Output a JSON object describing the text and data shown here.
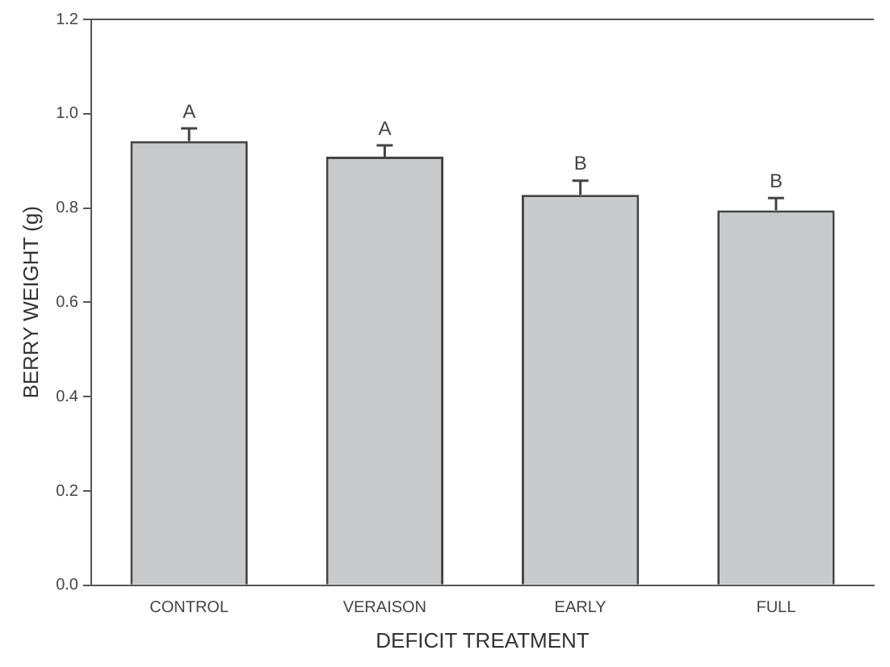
{
  "chart_data": {
    "type": "bar",
    "xlabel": "DEFICIT TREATMENT",
    "ylabel": "BERRY WEIGHT (g)",
    "categories": [
      "CONTROL",
      "VERAISON",
      "EARLY",
      "FULL"
    ],
    "values": [
      0.942,
      0.909,
      0.828,
      0.795
    ],
    "errors": [
      [
        0.942,
        0.969
      ],
      [
        0.909,
        0.933
      ],
      [
        0.828,
        0.858
      ],
      [
        0.795,
        0.821
      ]
    ],
    "color": "#c8cacc",
    "ylim": [
      0,
      1.2
    ],
    "yticks": [
      {
        "value": 0,
        "label": "0.0"
      },
      {
        "value": 0.2,
        "label": "0.2"
      },
      {
        "value": 0.4,
        "label": "0.4"
      },
      {
        "value": 0.6,
        "label": "0.6"
      },
      {
        "value": 0.8,
        "label": "0.8"
      },
      {
        "value": 1.0,
        "label": "1.0"
      },
      {
        "value": 1.2,
        "label": "1.2"
      }
    ],
    "annotations": [
      {
        "text": "A",
        "x": "CONTROL",
        "y": 0.969
      },
      {
        "text": "A",
        "x": "VERAISON",
        "y": 0.933
      },
      {
        "text": "B",
        "x": "EARLY",
        "y": 0.858
      },
      {
        "text": "B",
        "x": "FULL",
        "y": 0.821
      }
    ],
    "grid": false,
    "legend": false
  }
}
